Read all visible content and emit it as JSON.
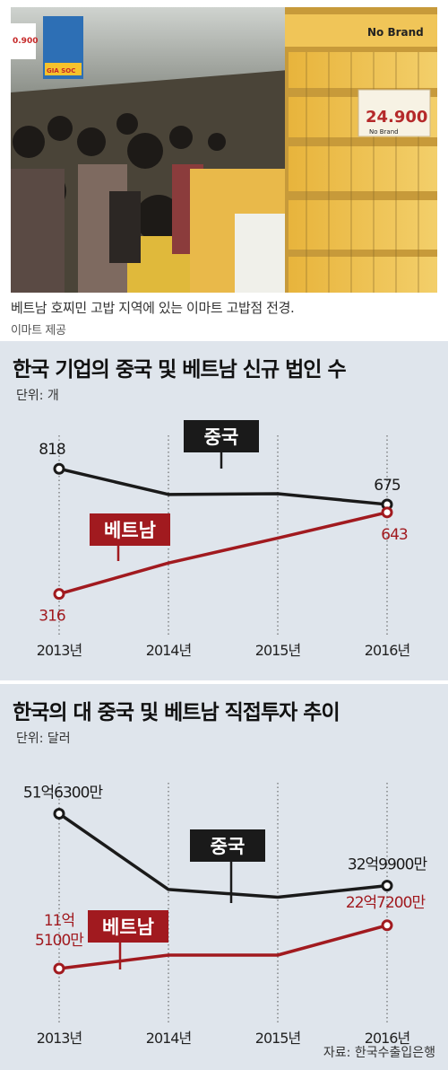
{
  "caption": {
    "text": "베트남 호찌민 고밥 지역에 있는 이마트 고밥점 전경.",
    "credit": "이마트 제공"
  },
  "photo": {
    "signs": [
      "0.900",
      "GIA SOC",
      "No Brand",
      "24.900",
      "No Brand"
    ]
  },
  "colors": {
    "china": "#1a1a1a",
    "vietnam": "#a11a1f",
    "panel_bg": "#dfe5ec"
  },
  "chart_data": [
    {
      "type": "line",
      "title": "한국 기업의 중국 및 베트남 신규 법인 수",
      "unit": "단위: 개",
      "categories": [
        "2013년",
        "2014년",
        "2015년",
        "2016년"
      ],
      "ylim": [
        250,
        880
      ],
      "series": [
        {
          "name": "중국",
          "values": [
            818,
            715,
            718,
            675
          ],
          "labels": [
            "818",
            "",
            "",
            "675"
          ]
        },
        {
          "name": "베트남",
          "values": [
            316,
            440,
            540,
            643
          ],
          "labels": [
            "316",
            "",
            "",
            "643"
          ]
        }
      ]
    },
    {
      "type": "line",
      "title": "한국의 대 중국 및 베트남 직접투자 추이",
      "unit": "단위: 달러",
      "categories": [
        "2013년",
        "2014년",
        "2015년",
        "2016년"
      ],
      "ylim": [
        500,
        5500
      ],
      "series": [
        {
          "name": "중국",
          "values": [
            5163,
            3200,
            3000,
            3299
          ],
          "labels": [
            "51억6300만",
            "",
            "",
            "32억9900만"
          ]
        },
        {
          "name": "베트남",
          "values": [
            1151,
            1500,
            1500,
            2272
          ],
          "labels": [
            "11억 5100만",
            "",
            "",
            "22억7200만"
          ]
        }
      ]
    }
  ],
  "source": "자료: 한국수출입은행"
}
